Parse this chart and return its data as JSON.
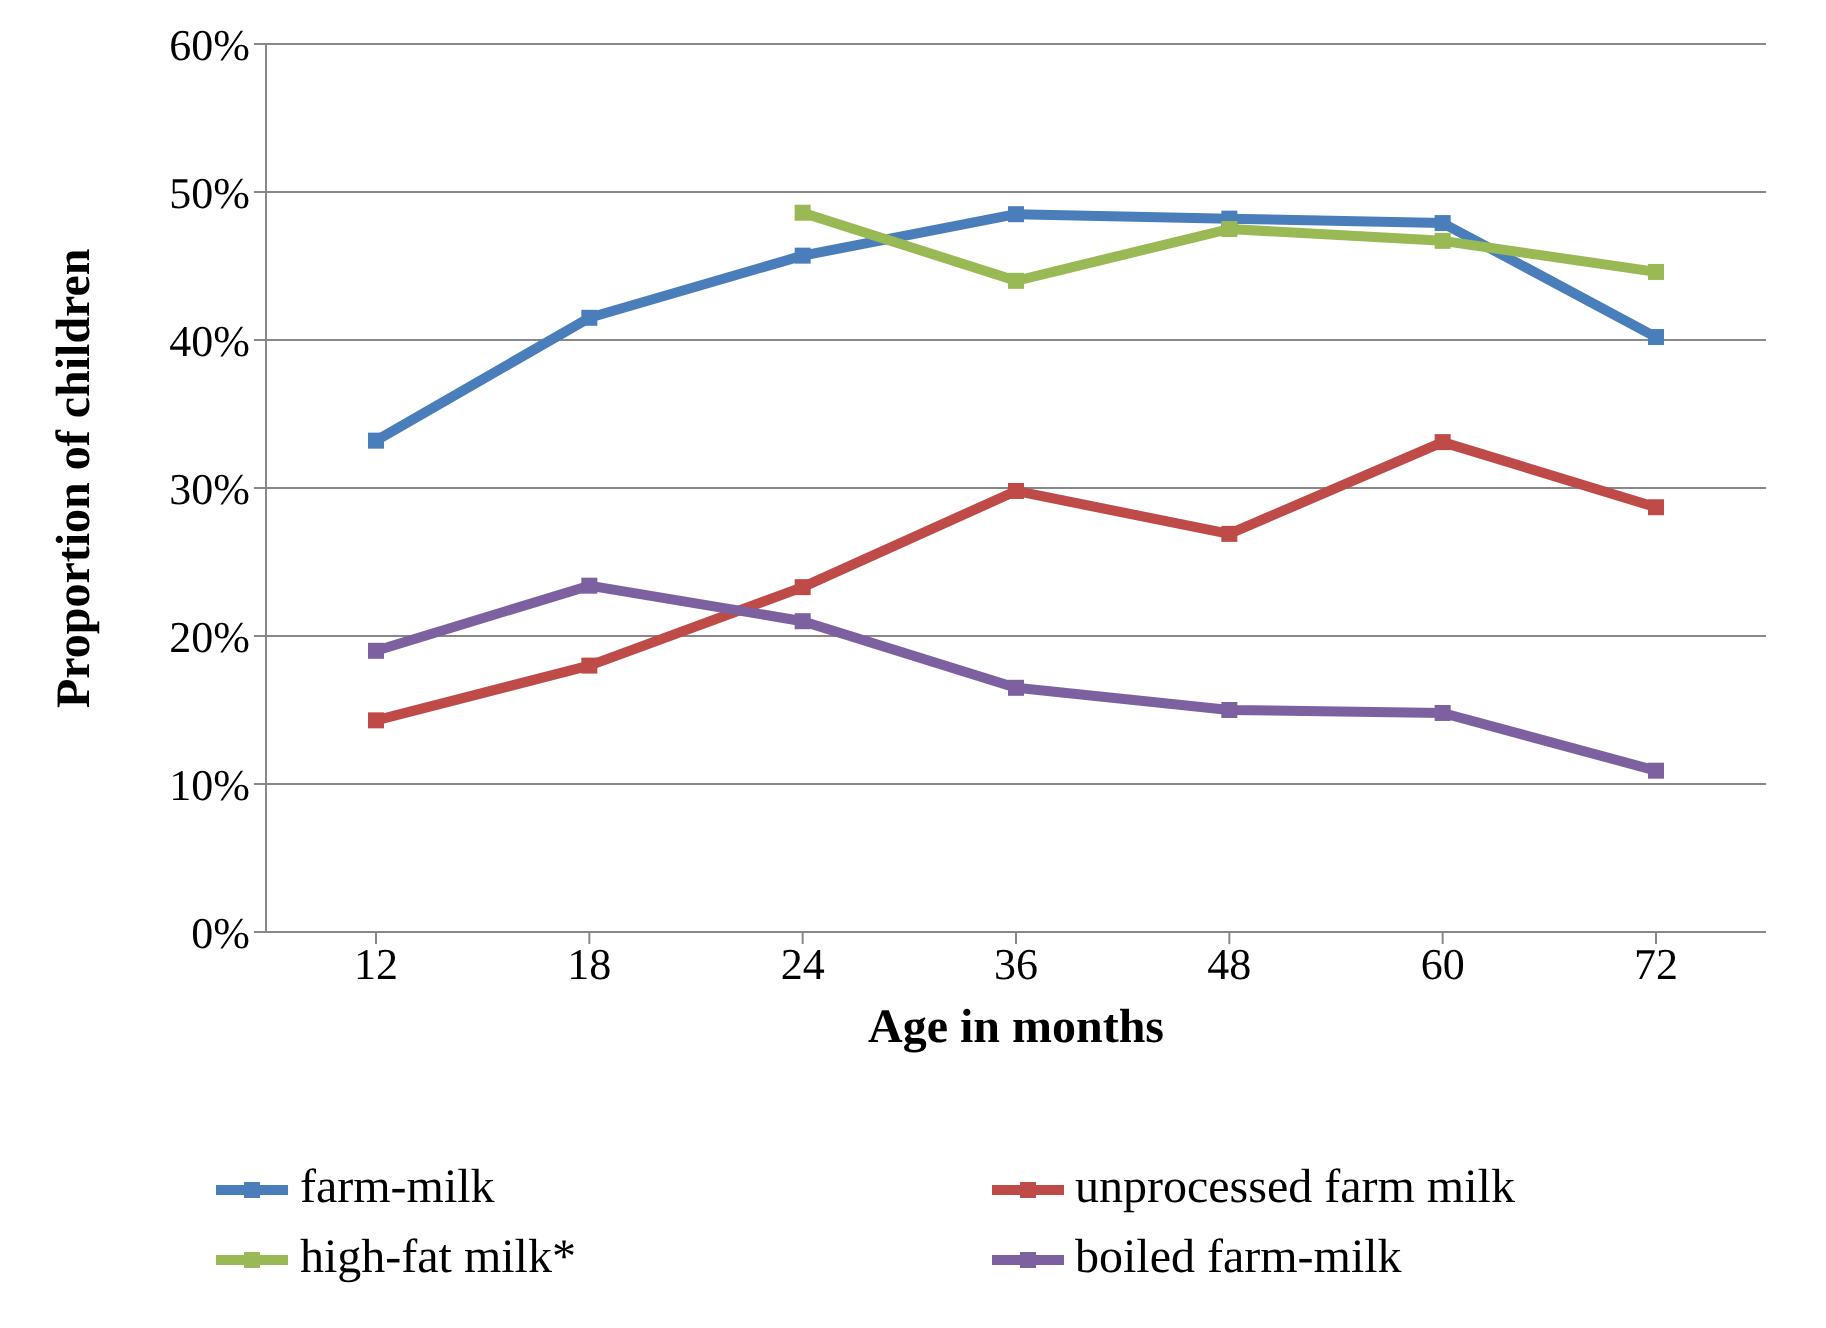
{
  "chart_data": {
    "type": "line",
    "xlabel": "Age in months",
    "ylabel": "Proportion of children",
    "categories": [
      "12",
      "18",
      "24",
      "36",
      "48",
      "60",
      "72"
    ],
    "series": [
      {
        "name": "farm-milk",
        "color": "#4a7ebb",
        "values": [
          33.2,
          41.5,
          45.7,
          48.5,
          48.2,
          47.9,
          40.2
        ]
      },
      {
        "name": "unprocessed farm milk",
        "color": "#be4b48",
        "values": [
          14.3,
          18,
          23.3,
          29.8,
          26.9,
          33.1,
          28.7
        ]
      },
      {
        "name": "high-fat milk*",
        "color": "#98b954",
        "values": [
          null,
          null,
          48.6,
          44,
          47.5,
          46.7,
          44.6
        ]
      },
      {
        "name": "boiled farm-milk",
        "color": "#7d60a0",
        "values": [
          19,
          23.4,
          21,
          16.5,
          15,
          14.8,
          10.9
        ]
      }
    ],
    "ylim": [
      0,
      60
    ],
    "yticks": [
      {
        "value": 0,
        "label": "0%"
      },
      {
        "value": 10,
        "label": "10%"
      },
      {
        "value": 20,
        "label": "20%"
      },
      {
        "value": 30,
        "label": "30%"
      },
      {
        "value": 40,
        "label": "40%"
      },
      {
        "value": 50,
        "label": "50%"
      },
      {
        "value": 60,
        "label": "60%"
      }
    ],
    "grid": "y",
    "legend": "bottom",
    "marker": "square",
    "line_style": "solid"
  }
}
